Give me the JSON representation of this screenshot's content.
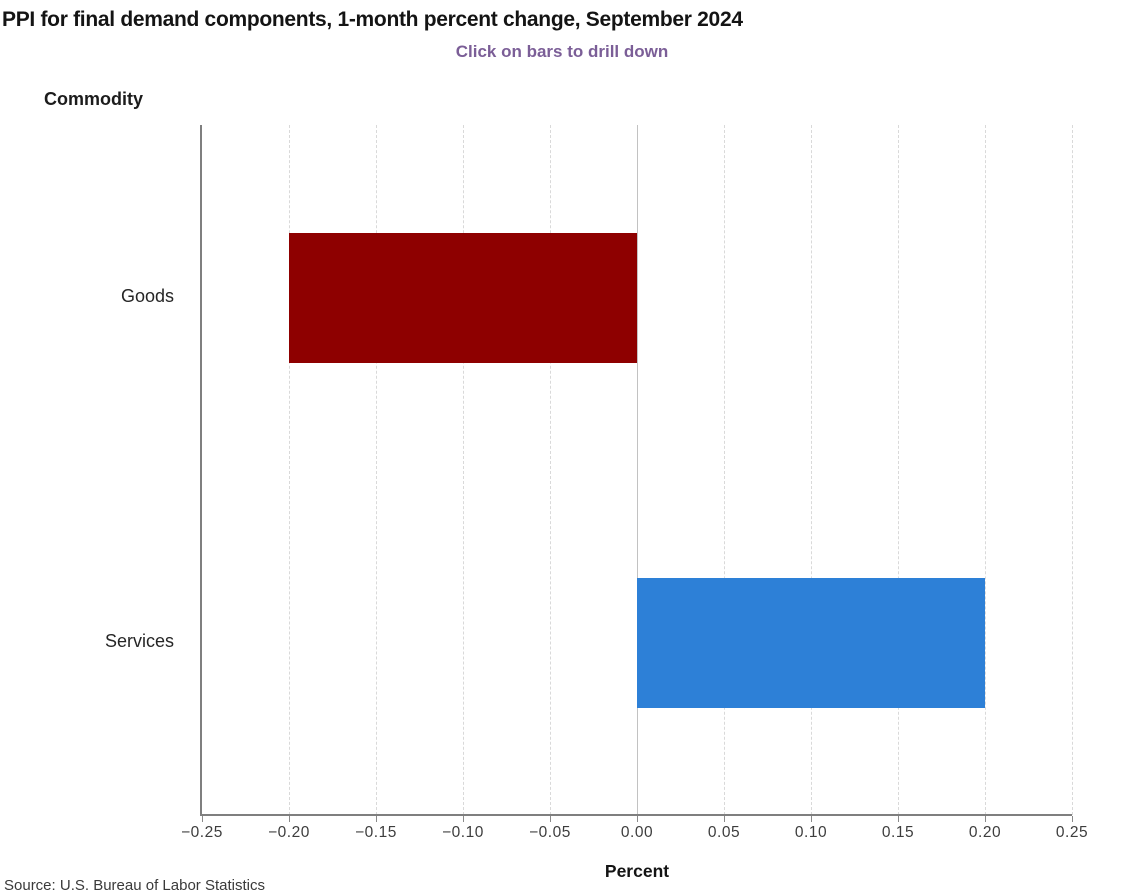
{
  "header": {
    "title": "PPI for final demand components, 1-month percent change, September 2024",
    "subtitle": "Click on bars to drill down"
  },
  "chart_data": {
    "type": "bar",
    "orientation": "horizontal",
    "title": "PPI for final demand components, 1-month percent change, September 2024",
    "subtitle": "Click on bars to drill down",
    "categories": [
      "Goods",
      "Services"
    ],
    "values": [
      -0.2,
      0.2
    ],
    "bar_colors": [
      "#8e0000",
      "#2d80d7"
    ],
    "xlabel": "Percent",
    "ylabel": "Commodity",
    "xlim": [
      -0.25,
      0.25
    ],
    "xtick_labels": [
      "−0.25",
      "−0.20",
      "−0.15",
      "−0.10",
      "−0.05",
      "0.00",
      "0.05",
      "0.10",
      "0.15",
      "0.20",
      "0.25"
    ],
    "grid": "vertical dashed gridlines every 0.05",
    "legend": "none",
    "zero_line": true
  },
  "footer": {
    "source": "Source: U.S. Bureau of Labor Statistics"
  },
  "colors": {
    "goods_bar": "#8e0000",
    "services_bar": "#2d80d7",
    "subtitle_text": "#7b5e97",
    "axis_line": "#7f7f7f",
    "gridline": "#d9d9d9",
    "zero_line": "#c2c2c2",
    "title_text": "#141414"
  }
}
